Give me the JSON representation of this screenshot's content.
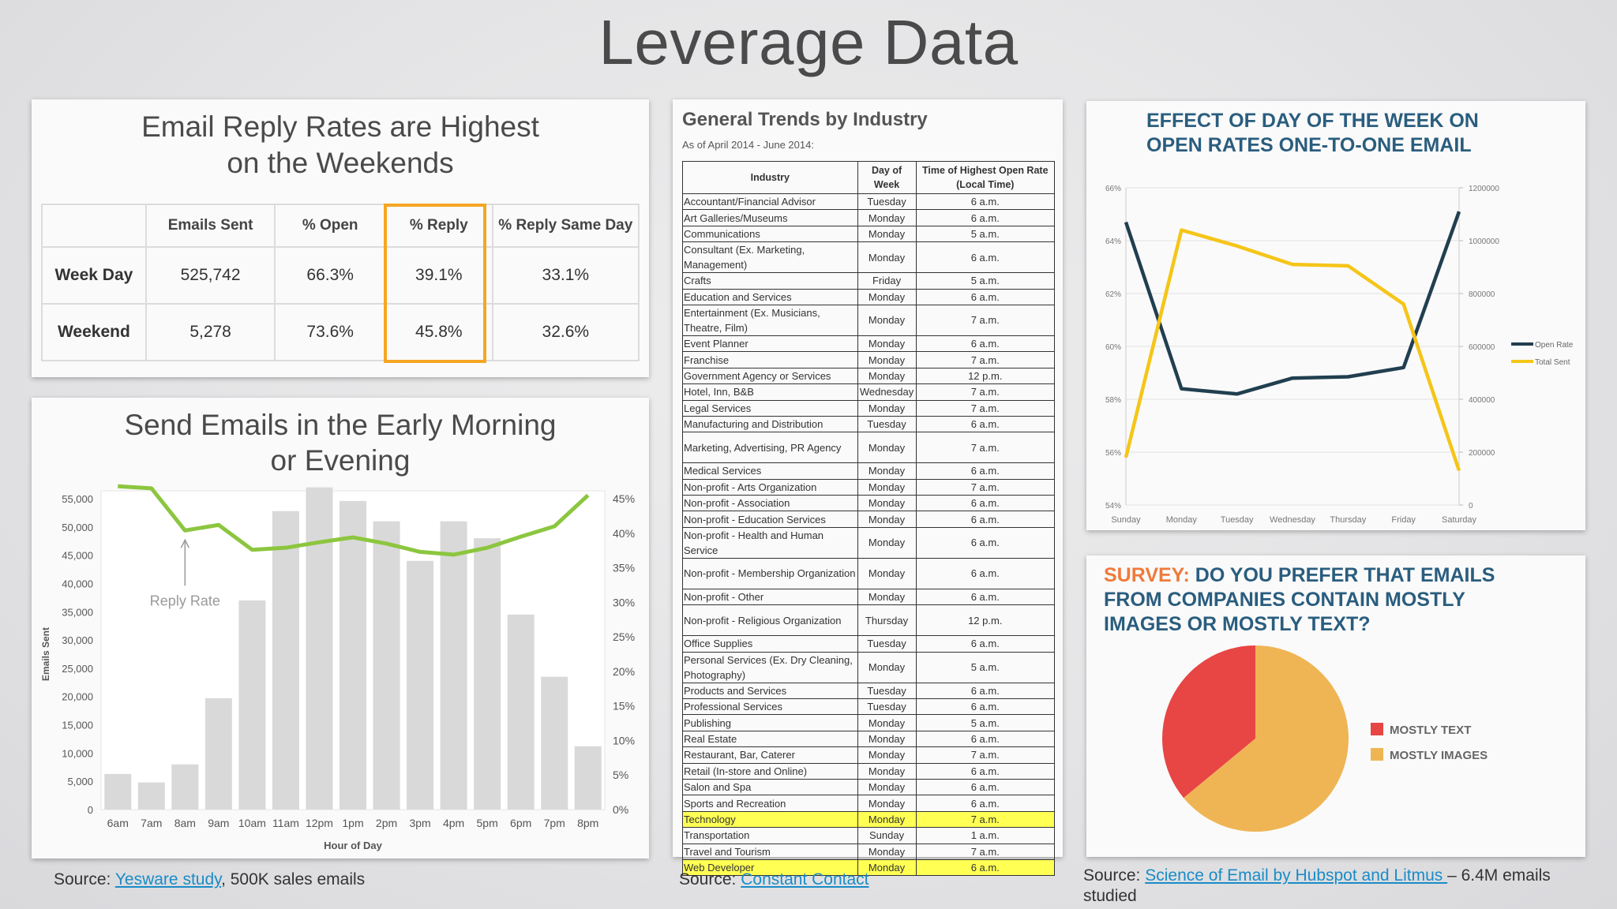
{
  "page_title": "Leverage Data",
  "colors": {
    "accent_orange": "#f5a623",
    "bar_gray": "#d9d9d9",
    "reply_green": "#8cc63f",
    "open_rate_navy": "#213f4f",
    "total_sent_yellow": "#f5c518",
    "pie_red": "#e84545",
    "pie_yellow": "#efb554",
    "highlight_yellow": "#ffff54",
    "link_blue": "#1a8cc6"
  },
  "reply_panel": {
    "title_line1": "Email Reply Rates are Highest",
    "title_line2": "on the Weekends",
    "headers": [
      "",
      "Emails Sent",
      "% Open",
      "% Reply",
      "% Reply Same Day"
    ],
    "rows": [
      {
        "label": "Week Day",
        "cells": [
          "525,742",
          "66.3%",
          "39.1%",
          "33.1%"
        ]
      },
      {
        "label": "Weekend",
        "cells": [
          "5,278",
          "73.6%",
          "45.8%",
          "32.6%"
        ]
      }
    ],
    "highlighted_column": "% Reply"
  },
  "morning_panel": {
    "title_line1": "Send Emails in the Early Morning",
    "title_line2": "or Evening",
    "annotation": "Reply Rate"
  },
  "industry_panel": {
    "title": "General Trends by Industry",
    "subtitle": "As of April 2014 - June 2014:",
    "headers": [
      "Industry",
      "Day of Week",
      "Time of Highest Open Rate (Local Time)"
    ],
    "rows": [
      [
        "Accountant/Financial Advisor",
        "Tuesday",
        "6 a.m."
      ],
      [
        "Art Galleries/Museums",
        "Monday",
        "6 a.m."
      ],
      [
        "Communications",
        "Monday",
        "5 a.m."
      ],
      [
        "Consultant (Ex. Marketing, Management)",
        "Monday",
        "6 a.m."
      ],
      [
        "Crafts",
        "Friday",
        "5 a.m."
      ],
      [
        "Education and Services",
        "Monday",
        "6 a.m."
      ],
      [
        "Entertainment (Ex. Musicians, Theatre, Film)",
        "Monday",
        "7 a.m."
      ],
      [
        "Event Planner",
        "Monday",
        "6 a.m."
      ],
      [
        "Franchise",
        "Monday",
        "7 a.m."
      ],
      [
        "Government Agency or Services",
        "Monday",
        "12 p.m."
      ],
      [
        "Hotel, Inn, B&B",
        "Wednesday",
        "7 a.m."
      ],
      [
        "Legal Services",
        "Monday",
        "7 a.m."
      ],
      [
        "Manufacturing and Distribution",
        "Tuesday",
        "6 a.m."
      ],
      [
        "Marketing, Advertising, PR Agency",
        "Monday",
        "7 a.m."
      ],
      [
        "Medical Services",
        "Monday",
        "6 a.m."
      ],
      [
        "Non-profit - Arts Organization",
        "Monday",
        "7 a.m."
      ],
      [
        "Non-profit - Association",
        "Monday",
        "6 a.m."
      ],
      [
        "Non-profit - Education Services",
        "Monday",
        "6 a.m."
      ],
      [
        "Non-profit - Health and Human Service",
        "Monday",
        "6 a.m."
      ],
      [
        "Non-profit - Membership Organization",
        "Monday",
        "6 a.m."
      ],
      [
        "Non-profit - Other",
        "Monday",
        "6 a.m."
      ],
      [
        "Non-profit - Religious Organization",
        "Thursday",
        "12 p.m."
      ],
      [
        "Office Supplies",
        "Tuesday",
        "6 a.m."
      ],
      [
        "Personal Services (Ex. Dry Cleaning, Photography)",
        "Monday",
        "5 a.m."
      ],
      [
        "Products and Services",
        "Tuesday",
        "6 a.m."
      ],
      [
        "Professional Services",
        "Tuesday",
        "6 a.m."
      ],
      [
        "Publishing",
        "Monday",
        "5 a.m."
      ],
      [
        "Real Estate",
        "Monday",
        "6 a.m."
      ],
      [
        "Restaurant, Bar, Caterer",
        "Monday",
        "7 a.m."
      ],
      [
        "Retail (In-store and Online)",
        "Monday",
        "6 a.m."
      ],
      [
        "Salon and Spa",
        "Monday",
        "6 a.m."
      ],
      [
        "Sports and Recreation",
        "Monday",
        "6 a.m."
      ],
      [
        "Technology",
        "Monday",
        "7 a.m."
      ],
      [
        "Transportation",
        "Sunday",
        "1 a.m."
      ],
      [
        "Travel and Tourism",
        "Monday",
        "7 a.m."
      ],
      [
        "Web Developer",
        "Monday",
        "6 a.m."
      ]
    ],
    "highlighted_rows": [
      "Technology",
      "Web Developer"
    ]
  },
  "dow_panel": {
    "title_line1": "EFFECT OF DAY OF THE WEEK ON",
    "title_line2": "OPEN RATES ONE-TO-ONE EMAIL"
  },
  "survey_panel": {
    "title_accent": "SURVEY:",
    "title_rest": " DO YOU PREFER THAT EMAILS FROM COMPANIES CONTAIN MOSTLY IMAGES OR MOSTLY TEXT?"
  },
  "sources": {
    "s1_prefix": "Source: ",
    "s1_link": "Yesware study",
    "s1_suffix": ", 500K sales emails",
    "s2_prefix": "Source: ",
    "s2_link": "Constant Contact",
    "s3_prefix": "Source: ",
    "s3_link": "Science of Email by Hubspot and Litmus ",
    "s3_suffix_line1": "– 6.4M emails",
    "s3_suffix_line2": "studied"
  },
  "chart_data": [
    {
      "type": "bar",
      "xlabel": "Hour of Day",
      "ylabel": "Emails Sent",
      "categories": [
        "6am",
        "7am",
        "8am",
        "9am",
        "10am",
        "11am",
        "12pm",
        "1pm",
        "2pm",
        "3pm",
        "4pm",
        "5pm",
        "6pm",
        "7pm",
        "8pm"
      ],
      "series": [
        {
          "values": [
            6300,
            4800,
            8000,
            19700,
            37000,
            52800,
            57000,
            54600,
            51000,
            44000,
            51000,
            48000,
            34500,
            23500,
            11200
          ]
        },
        {
          "name": "Reply Rate",
          "values": [
            46.8,
            46.5,
            40.4,
            41.2,
            37.6,
            37.9,
            38.7,
            39.4,
            38.5,
            37.3,
            36.9,
            37.9,
            39.5,
            41.0,
            45.5
          ]
        }
      ],
      "ylim": [
        0,
        55000
      ],
      "yticks": [
        "0",
        "5,000",
        "10,000",
        "15,000",
        "20,000",
        "25,000",
        "30,000",
        "35,000",
        "40,000",
        "45,000",
        "50,000",
        "55,000"
      ],
      "y2lim": [
        0,
        45
      ],
      "y2ticks": [
        "0%",
        "5%",
        "10%",
        "15%",
        "20%",
        "25%",
        "30%",
        "35%",
        "40%",
        "45%"
      ],
      "grid": false
    },
    {
      "type": "line",
      "categories": [
        "Sunday",
        "Monday",
        "Tuesday",
        "Wednesday",
        "Thursday",
        "Friday",
        "Saturday"
      ],
      "series": [
        {
          "name": "Open Rate",
          "axis": "left",
          "values": [
            64.7,
            58.4,
            58.2,
            58.8,
            58.85,
            59.2,
            65.1
          ]
        },
        {
          "name": "Total Sent",
          "axis": "right",
          "values": [
            180000,
            1040000,
            980000,
            910000,
            905000,
            760000,
            130000
          ]
        }
      ],
      "ylim": [
        54,
        66
      ],
      "yticks": [
        "54%",
        "56%",
        "58%",
        "60%",
        "62%",
        "64%",
        "66%"
      ],
      "y2lim": [
        0,
        1200000
      ],
      "y2ticks": [
        "0",
        "200000",
        "400000",
        "600000",
        "800000",
        "1000000",
        "1200000"
      ],
      "legend": "right",
      "grid": true
    },
    {
      "type": "pie",
      "labels": [
        "MOSTLY TEXT",
        "MOSTLY IMAGES"
      ],
      "values": [
        36,
        64
      ],
      "legend": "right"
    }
  ]
}
